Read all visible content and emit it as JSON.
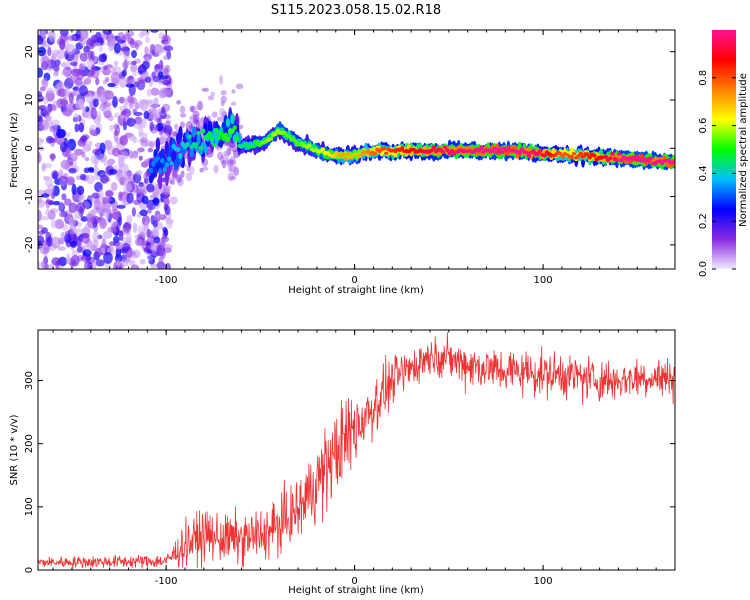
{
  "title": "S115.2023.058.15.02.R18",
  "chart_data": [
    {
      "type": "heatmap",
      "xlabel": "Height of straight line (km)",
      "ylabel": "Frequency (Hz)",
      "xlim": [
        -168,
        170
      ],
      "ylim": [
        -25,
        24.5
      ],
      "xticks": [
        -100,
        0,
        100
      ],
      "yticks": [
        -20,
        -10,
        0,
        10,
        20
      ],
      "colorbar": {
        "label": "Normalized spectral amplitude",
        "range": [
          0,
          1
        ],
        "ticks": [
          0.0,
          0.2,
          0.4,
          0.6,
          0.8
        ],
        "colormap": [
          "#f0e8ff",
          "#8a2be2",
          "#0000ff",
          "#00bfff",
          "#00ff00",
          "#ffff00",
          "#ff8000",
          "#ff0000",
          "#ff1493"
        ]
      },
      "ridge": {
        "x": [
          -105,
          -95,
          -85,
          -75,
          -65,
          -60,
          -50,
          -45,
          -40,
          -35,
          -30,
          -25,
          -20,
          -15,
          -10,
          -5,
          0,
          5,
          10,
          20,
          40,
          60,
          80,
          100,
          110,
          120,
          130,
          140,
          150,
          160,
          170
        ],
        "frequency": [
          -4,
          -1,
          1,
          2.5,
          4,
          0.5,
          1,
          2,
          4,
          2.5,
          1,
          0.5,
          -0.5,
          -1,
          -1.5,
          -1.5,
          -1.5,
          -1,
          -0.5,
          -0.5,
          -0.5,
          -0.5,
          -0.5,
          -1,
          -1.2,
          -1.5,
          -1.8,
          -2,
          -2.3,
          -2.6,
          -3
        ],
        "amplitude": [
          0.25,
          0.3,
          0.35,
          0.4,
          0.45,
          0.35,
          0.45,
          0.5,
          0.5,
          0.45,
          0.45,
          0.5,
          0.5,
          0.55,
          0.6,
          0.65,
          0.6,
          0.65,
          0.7,
          0.75,
          0.85,
          0.9,
          0.95,
          0.85,
          0.7,
          0.75,
          0.8,
          0.9,
          1.0,
          0.9,
          0.95
        ]
      }
    },
    {
      "type": "line",
      "xlabel": "Height of straight line (km)",
      "ylabel": "SNR (10 * v/v)",
      "xlim": [
        -168,
        170
      ],
      "ylim": [
        0,
        380
      ],
      "xticks": [
        -100,
        0,
        100
      ],
      "yticks": [
        0,
        100,
        200,
        300
      ],
      "series_color": "#ee3333",
      "envelope": {
        "x": [
          -168,
          -100,
          -90,
          -80,
          -70,
          -60,
          -50,
          -40,
          -30,
          -20,
          -10,
          0,
          10,
          20,
          30,
          40,
          50,
          60,
          70,
          80,
          90,
          100,
          110,
          120,
          130,
          140,
          150,
          160,
          170
        ],
        "mean": [
          12,
          14,
          40,
          55,
          50,
          48,
          55,
          70,
          95,
          140,
          185,
          225,
          260,
          300,
          320,
          340,
          335,
          325,
          320,
          315,
          315,
          310,
          310,
          305,
          300,
          300,
          305,
          305,
          305
        ],
        "spread": [
          6,
          8,
          25,
          28,
          28,
          28,
          30,
          32,
          35,
          45,
          50,
          45,
          35,
          25,
          25,
          20,
          22,
          25,
          25,
          25,
          25,
          25,
          25,
          25,
          25,
          22,
          22,
          22,
          22
        ]
      }
    }
  ]
}
